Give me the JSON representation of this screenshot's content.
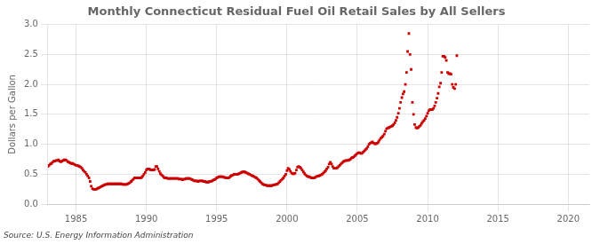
{
  "chart_data": {
    "type": "scatter",
    "title": "Monthly Connecticut Residual Fuel Oil Retail Sales by All Sellers",
    "ylabel": "Dollars per Gallon",
    "annotation": "Source: U.S. Energy Information Administration",
    "color": "#cc0000",
    "marker": "square",
    "grid": true,
    "xlim": [
      1983.0,
      2021.5
    ],
    "ylim": [
      0,
      3
    ],
    "xticks": [
      1985,
      1990,
      1995,
      2000,
      2005,
      2010,
      2015,
      2020
    ],
    "yticks": [
      {
        "value": 0,
        "label": "0.0"
      },
      0.5,
      {
        "value": 1,
        "label": "1.0"
      },
      1.5,
      {
        "value": 2,
        "label": "2.0"
      },
      2.5,
      {
        "value": 3,
        "label": "3.0"
      }
    ],
    "x": [
      1983.0,
      1983.08,
      1983.17,
      1983.25,
      1983.33,
      1983.42,
      1983.5,
      1983.58,
      1983.67,
      1983.75,
      1983.83,
      1983.92,
      1984.0,
      1984.08,
      1984.17,
      1984.25,
      1984.33,
      1984.42,
      1984.5,
      1984.58,
      1984.67,
      1984.75,
      1984.83,
      1984.92,
      1985.0,
      1985.08,
      1985.17,
      1985.25,
      1985.33,
      1985.42,
      1985.5,
      1985.58,
      1985.67,
      1985.75,
      1985.83,
      1985.92,
      1986.0,
      1986.08,
      1986.17,
      1986.25,
      1986.33,
      1986.42,
      1986.5,
      1986.58,
      1986.67,
      1986.75,
      1986.83,
      1986.92,
      1987.0,
      1987.08,
      1987.17,
      1987.25,
      1987.33,
      1987.42,
      1987.5,
      1987.58,
      1987.67,
      1987.75,
      1987.83,
      1987.92,
      1988.0,
      1988.08,
      1988.17,
      1988.25,
      1988.33,
      1988.42,
      1988.5,
      1988.58,
      1988.67,
      1988.75,
      1988.83,
      1988.92,
      1989.0,
      1989.08,
      1989.17,
      1989.25,
      1989.33,
      1989.42,
      1989.5,
      1989.58,
      1989.67,
      1989.75,
      1989.83,
      1989.92,
      1990.0,
      1990.08,
      1990.17,
      1990.25,
      1990.33,
      1990.42,
      1990.5,
      1990.58,
      1990.67,
      1990.75,
      1990.83,
      1990.92,
      1991.0,
      1991.08,
      1991.17,
      1991.25,
      1991.33,
      1991.42,
      1991.5,
      1991.58,
      1991.67,
      1991.75,
      1991.83,
      1991.92,
      1992.0,
      1992.08,
      1992.17,
      1992.25,
      1992.33,
      1992.42,
      1992.5,
      1992.58,
      1992.67,
      1992.75,
      1992.83,
      1992.92,
      1993.0,
      1993.08,
      1993.17,
      1993.25,
      1993.33,
      1993.42,
      1993.5,
      1993.58,
      1993.67,
      1993.75,
      1993.83,
      1993.92,
      1994.0,
      1994.08,
      1994.17,
      1994.25,
      1994.33,
      1994.42,
      1994.5,
      1994.58,
      1994.67,
      1994.75,
      1994.83,
      1994.92,
      1995.0,
      1995.08,
      1995.17,
      1995.25,
      1995.33,
      1995.42,
      1995.5,
      1995.58,
      1995.67,
      1995.75,
      1995.83,
      1995.92,
      1996.0,
      1996.08,
      1996.17,
      1996.25,
      1996.33,
      1996.42,
      1996.5,
      1996.58,
      1996.67,
      1996.75,
      1996.83,
      1996.92,
      1997.0,
      1997.08,
      1997.17,
      1997.25,
      1997.33,
      1997.42,
      1997.5,
      1997.58,
      1997.67,
      1997.75,
      1997.83,
      1997.92,
      1998.0,
      1998.08,
      1998.17,
      1998.25,
      1998.33,
      1998.42,
      1998.5,
      1998.58,
      1998.67,
      1998.75,
      1998.83,
      1998.92,
      1999.0,
      1999.08,
      1999.17,
      1999.25,
      1999.33,
      1999.42,
      1999.5,
      1999.58,
      1999.67,
      1999.75,
      1999.83,
      1999.92,
      2000.0,
      2000.08,
      2000.17,
      2000.25,
      2000.33,
      2000.42,
      2000.5,
      2000.58,
      2000.67,
      2000.75,
      2000.83,
      2000.92,
      2001.0,
      2001.08,
      2001.17,
      2001.25,
      2001.33,
      2001.42,
      2001.5,
      2001.58,
      2001.67,
      2001.75,
      2001.83,
      2001.92,
      2002.0,
      2002.08,
      2002.17,
      2002.25,
      2002.33,
      2002.42,
      2002.5,
      2002.58,
      2002.67,
      2002.75,
      2002.83,
      2002.92,
      2003.0,
      2003.08,
      2003.17,
      2003.25,
      2003.33,
      2003.42,
      2003.5,
      2003.58,
      2003.67,
      2003.75,
      2003.83,
      2003.92,
      2004.0,
      2004.08,
      2004.17,
      2004.25,
      2004.33,
      2004.42,
      2004.5,
      2004.58,
      2004.67,
      2004.75,
      2004.83,
      2004.92,
      2005.0,
      2005.08,
      2005.17,
      2005.25,
      2005.33,
      2005.42,
      2005.5,
      2005.58,
      2005.67,
      2005.75,
      2005.83,
      2005.92,
      2006.0,
      2006.08,
      2006.17,
      2006.25,
      2006.33,
      2006.42,
      2006.5,
      2006.58,
      2006.67,
      2006.75,
      2006.83,
      2006.92,
      2007.0,
      2007.08,
      2007.17,
      2007.25,
      2007.33,
      2007.42,
      2007.5,
      2007.58,
      2007.67,
      2007.75,
      2007.83,
      2007.92,
      2008.0,
      2008.08,
      2008.17,
      2008.25,
      2008.33,
      2008.42,
      2008.5,
      2008.58,
      2008.67,
      2008.75,
      2008.83,
      2008.92,
      2009.0,
      2009.08,
      2009.17,
      2009.25,
      2009.33,
      2009.42,
      2009.5,
      2009.58,
      2009.67,
      2009.75,
      2009.83,
      2009.92,
      2010.0,
      2010.08,
      2010.17,
      2010.25,
      2010.33,
      2010.42,
      2010.5,
      2010.58,
      2010.67,
      2010.75,
      2010.83,
      2010.92,
      2011.0,
      2011.08,
      2011.17,
      2011.25,
      2011.33,
      2011.42,
      2011.5,
      2011.58,
      2011.67,
      2011.75,
      2011.83,
      2011.92,
      2012.0,
      2012.08
    ],
    "values": [
      0.63,
      0.65,
      0.67,
      0.68,
      0.7,
      0.72,
      0.72,
      0.73,
      0.73,
      0.74,
      0.72,
      0.71,
      0.72,
      0.73,
      0.74,
      0.74,
      0.73,
      0.71,
      0.7,
      0.69,
      0.68,
      0.68,
      0.67,
      0.66,
      0.65,
      0.65,
      0.64,
      0.63,
      0.62,
      0.6,
      0.57,
      0.55,
      0.53,
      0.5,
      0.47,
      0.44,
      0.38,
      0.3,
      0.26,
      0.25,
      0.25,
      0.25,
      0.26,
      0.27,
      0.28,
      0.29,
      0.3,
      0.31,
      0.32,
      0.33,
      0.33,
      0.34,
      0.34,
      0.34,
      0.34,
      0.34,
      0.34,
      0.34,
      0.34,
      0.34,
      0.34,
      0.34,
      0.34,
      0.34,
      0.33,
      0.33,
      0.33,
      0.33,
      0.34,
      0.35,
      0.36,
      0.38,
      0.4,
      0.42,
      0.44,
      0.44,
      0.44,
      0.44,
      0.44,
      0.44,
      0.45,
      0.47,
      0.5,
      0.53,
      0.57,
      0.59,
      0.59,
      0.58,
      0.57,
      0.57,
      0.57,
      0.58,
      0.63,
      0.63,
      0.59,
      0.55,
      0.51,
      0.49,
      0.47,
      0.45,
      0.44,
      0.44,
      0.43,
      0.43,
      0.43,
      0.43,
      0.43,
      0.43,
      0.43,
      0.43,
      0.43,
      0.43,
      0.42,
      0.42,
      0.42,
      0.41,
      0.42,
      0.42,
      0.43,
      0.43,
      0.43,
      0.43,
      0.42,
      0.41,
      0.4,
      0.39,
      0.39,
      0.39,
      0.38,
      0.39,
      0.39,
      0.39,
      0.39,
      0.38,
      0.38,
      0.37,
      0.37,
      0.37,
      0.38,
      0.38,
      0.39,
      0.4,
      0.41,
      0.42,
      0.44,
      0.45,
      0.46,
      0.46,
      0.46,
      0.46,
      0.45,
      0.45,
      0.44,
      0.44,
      0.44,
      0.45,
      0.47,
      0.48,
      0.49,
      0.5,
      0.5,
      0.5,
      0.5,
      0.51,
      0.52,
      0.53,
      0.54,
      0.54,
      0.54,
      0.53,
      0.52,
      0.51,
      0.5,
      0.49,
      0.48,
      0.47,
      0.46,
      0.45,
      0.44,
      0.42,
      0.4,
      0.38,
      0.36,
      0.34,
      0.33,
      0.32,
      0.32,
      0.31,
      0.31,
      0.31,
      0.31,
      0.31,
      0.32,
      0.32,
      0.33,
      0.33,
      0.34,
      0.36,
      0.38,
      0.4,
      0.42,
      0.44,
      0.47,
      0.5,
      0.56,
      0.6,
      0.58,
      0.55,
      0.52,
      0.51,
      0.51,
      0.52,
      0.57,
      0.62,
      0.63,
      0.62,
      0.6,
      0.57,
      0.54,
      0.51,
      0.49,
      0.47,
      0.46,
      0.46,
      0.45,
      0.44,
      0.44,
      0.44,
      0.45,
      0.46,
      0.47,
      0.47,
      0.48,
      0.49,
      0.5,
      0.52,
      0.54,
      0.56,
      0.59,
      0.62,
      0.67,
      0.7,
      0.67,
      0.63,
      0.6,
      0.6,
      0.6,
      0.61,
      0.63,
      0.65,
      0.67,
      0.69,
      0.71,
      0.72,
      0.73,
      0.73,
      0.73,
      0.74,
      0.75,
      0.77,
      0.78,
      0.79,
      0.81,
      0.83,
      0.85,
      0.86,
      0.86,
      0.85,
      0.85,
      0.87,
      0.89,
      0.91,
      0.93,
      0.96,
      1.0,
      1.02,
      1.03,
      1.04,
      1.02,
      1.01,
      1.01,
      1.02,
      1.04,
      1.07,
      1.1,
      1.12,
      1.14,
      1.17,
      1.22,
      1.26,
      1.27,
      1.28,
      1.29,
      1.3,
      1.31,
      1.33,
      1.36,
      1.4,
      1.45,
      1.52,
      1.6,
      1.7,
      1.78,
      1.84,
      1.88,
      2.0,
      2.2,
      2.55,
      2.85,
      2.5,
      2.25,
      1.7,
      1.5,
      1.33,
      1.28,
      1.27,
      1.28,
      1.3,
      1.32,
      1.35,
      1.38,
      1.4,
      1.43,
      1.47,
      1.52,
      1.56,
      1.58,
      1.58,
      1.58,
      1.6,
      1.64,
      1.7,
      1.77,
      1.85,
      1.96,
      2.02,
      2.2,
      2.47,
      2.47,
      2.45,
      2.4,
      2.2,
      2.18,
      2.18,
      2.17,
      2.0,
      1.95,
      1.93,
      2.0,
      2.48
    ]
  }
}
